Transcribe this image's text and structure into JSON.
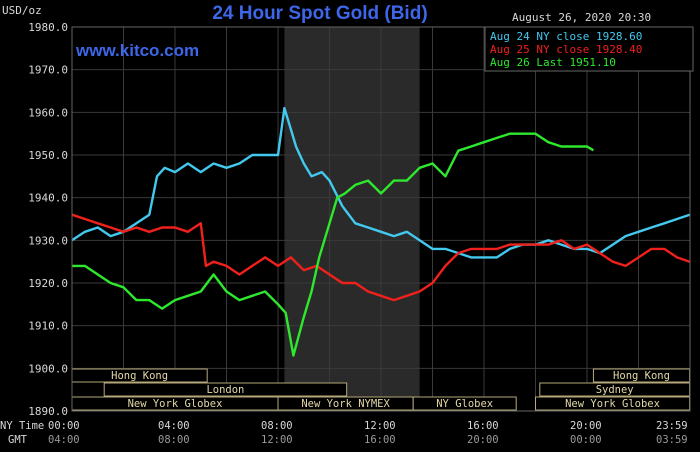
{
  "header": {
    "title": "24 Hour Spot Gold (Bid)",
    "unit_label": "USD/oz",
    "timestamp": "August 26, 2020 20:30",
    "watermark": "www.kitco.com"
  },
  "legend": [
    {
      "label": "Aug 24 NY close 1928.60",
      "color": "#43c8ee"
    },
    {
      "label": "Aug 25 NY close 1928.40",
      "color": "#f0201c"
    },
    {
      "label": "Aug 26 Last 1951.10",
      "color": "#2ee82e"
    }
  ],
  "sessions": [
    {
      "label": "Hong Kong",
      "row": 0,
      "start": "00:00",
      "end": "05:15"
    },
    {
      "label": "Hong Kong",
      "row": 0,
      "start": "20:15",
      "end": "23:59"
    },
    {
      "label": "London",
      "row": 1,
      "start": "01:15",
      "end": "10:40"
    },
    {
      "label": "Sydney",
      "row": 1,
      "start": "18:10",
      "end": "23:59"
    },
    {
      "label": "New York Globex",
      "row": 2,
      "start": "00:00",
      "end": "08:00"
    },
    {
      "label": "New York NYMEX",
      "row": 2,
      "start": "08:00",
      "end": "13:15"
    },
    {
      "label": "NY Globex",
      "row": 2,
      "start": "13:15",
      "end": "17:15"
    },
    {
      "label": "New York Globex",
      "row": 2,
      "start": "18:00",
      "end": "23:59"
    }
  ],
  "time_rows": {
    "ny_label": "NY Time",
    "gmt_label": "GMT",
    "ny_ticks": [
      "00:00",
      "04:00",
      "08:00",
      "12:00",
      "16:00",
      "20:00",
      "23:59"
    ],
    "gmt_ticks": [
      "04:00",
      "08:00",
      "12:00",
      "16:00",
      "20:00",
      "00:00",
      "03:59"
    ]
  },
  "colors": {
    "background": "#000000",
    "grid": "#3a3a3a",
    "title": "#3d66e8",
    "nymex_band": "#2a2a2a",
    "session_fill": "#000000",
    "session_border": "#b5a87a",
    "session_text": "#e2d7a8",
    "axis_text": "#d8d8d8"
  },
  "chart_data": {
    "type": "line",
    "title": "24 Hour Spot Gold (Bid)",
    "ylabel": "USD/oz",
    "ylim": [
      1890,
      1980
    ],
    "yticks": [
      1890.0,
      1900.0,
      1910.0,
      1920.0,
      1930.0,
      1940.0,
      1950.0,
      1960.0,
      1970.0,
      1980.0
    ],
    "xlim_hours": [
      0,
      24
    ],
    "shaded_region_hours": [
      8.25,
      13.5
    ],
    "series": [
      {
        "name": "Aug 24 NY close 1928.60",
        "color": "#43c8ee",
        "points": [
          [
            0.0,
            1930
          ],
          [
            0.5,
            1932
          ],
          [
            1.0,
            1933
          ],
          [
            1.5,
            1931
          ],
          [
            2.0,
            1932
          ],
          [
            2.5,
            1934
          ],
          [
            3.0,
            1936
          ],
          [
            3.3,
            1945
          ],
          [
            3.6,
            1947
          ],
          [
            4.0,
            1946
          ],
          [
            4.5,
            1948
          ],
          [
            5.0,
            1946
          ],
          [
            5.5,
            1948
          ],
          [
            6.0,
            1947
          ],
          [
            6.5,
            1948
          ],
          [
            7.0,
            1950
          ],
          [
            7.5,
            1950
          ],
          [
            8.0,
            1950
          ],
          [
            8.25,
            1961
          ],
          [
            8.5,
            1956
          ],
          [
            8.7,
            1952
          ],
          [
            9.0,
            1948
          ],
          [
            9.3,
            1945
          ],
          [
            9.7,
            1946
          ],
          [
            10.0,
            1944
          ],
          [
            10.5,
            1938
          ],
          [
            11.0,
            1934
          ],
          [
            11.5,
            1933
          ],
          [
            12.0,
            1932
          ],
          [
            12.5,
            1931
          ],
          [
            13.0,
            1932
          ],
          [
            13.5,
            1930
          ],
          [
            14.0,
            1928
          ],
          [
            14.5,
            1928
          ],
          [
            15.0,
            1927
          ],
          [
            15.5,
            1926
          ],
          [
            16.0,
            1926
          ],
          [
            16.5,
            1926
          ],
          [
            17.0,
            1928
          ],
          [
            17.5,
            1929
          ],
          [
            18.0,
            1929
          ],
          [
            18.5,
            1930
          ],
          [
            19.0,
            1929
          ],
          [
            19.5,
            1928
          ],
          [
            20.0,
            1928
          ],
          [
            20.5,
            1927
          ],
          [
            21.0,
            1929
          ],
          [
            21.5,
            1931
          ],
          [
            22.0,
            1932
          ],
          [
            22.5,
            1933
          ],
          [
            23.0,
            1934
          ],
          [
            23.5,
            1935
          ],
          [
            23.99,
            1936
          ]
        ]
      },
      {
        "name": "Aug 25 NY close 1928.40",
        "color": "#f0201c",
        "points": [
          [
            0.0,
            1936
          ],
          [
            0.5,
            1935
          ],
          [
            1.0,
            1934
          ],
          [
            1.5,
            1933
          ],
          [
            2.0,
            1932
          ],
          [
            2.5,
            1933
          ],
          [
            3.0,
            1932
          ],
          [
            3.5,
            1933
          ],
          [
            4.0,
            1933
          ],
          [
            4.5,
            1932
          ],
          [
            5.0,
            1934
          ],
          [
            5.2,
            1924
          ],
          [
            5.5,
            1925
          ],
          [
            6.0,
            1924
          ],
          [
            6.5,
            1922
          ],
          [
            7.0,
            1924
          ],
          [
            7.5,
            1926
          ],
          [
            8.0,
            1924
          ],
          [
            8.5,
            1926
          ],
          [
            9.0,
            1923
          ],
          [
            9.5,
            1924
          ],
          [
            10.0,
            1922
          ],
          [
            10.5,
            1920
          ],
          [
            11.0,
            1920
          ],
          [
            11.5,
            1918
          ],
          [
            12.0,
            1917
          ],
          [
            12.5,
            1916
          ],
          [
            13.0,
            1917
          ],
          [
            13.5,
            1918
          ],
          [
            14.0,
            1920
          ],
          [
            14.5,
            1924
          ],
          [
            15.0,
            1927
          ],
          [
            15.5,
            1928
          ],
          [
            16.0,
            1928
          ],
          [
            16.5,
            1928
          ],
          [
            17.0,
            1929
          ],
          [
            17.5,
            1929
          ],
          [
            18.0,
            1929
          ],
          [
            18.5,
            1929
          ],
          [
            19.0,
            1930
          ],
          [
            19.5,
            1928
          ],
          [
            20.0,
            1929
          ],
          [
            20.5,
            1927
          ],
          [
            21.0,
            1925
          ],
          [
            21.5,
            1924
          ],
          [
            22.0,
            1926
          ],
          [
            22.5,
            1928
          ],
          [
            23.0,
            1928
          ],
          [
            23.5,
            1926
          ],
          [
            23.99,
            1925
          ]
        ]
      },
      {
        "name": "Aug 26 Last 1951.10",
        "color": "#2ee82e",
        "points": [
          [
            0.0,
            1924
          ],
          [
            0.5,
            1924
          ],
          [
            1.0,
            1922
          ],
          [
            1.5,
            1920
          ],
          [
            2.0,
            1919
          ],
          [
            2.5,
            1916
          ],
          [
            3.0,
            1916
          ],
          [
            3.5,
            1914
          ],
          [
            4.0,
            1916
          ],
          [
            4.5,
            1917
          ],
          [
            5.0,
            1918
          ],
          [
            5.5,
            1922
          ],
          [
            6.0,
            1918
          ],
          [
            6.5,
            1916
          ],
          [
            7.0,
            1917
          ],
          [
            7.5,
            1918
          ],
          [
            8.0,
            1915
          ],
          [
            8.3,
            1913
          ],
          [
            8.6,
            1903
          ],
          [
            9.0,
            1912
          ],
          [
            9.3,
            1918
          ],
          [
            9.6,
            1926
          ],
          [
            10.0,
            1934
          ],
          [
            10.3,
            1940
          ],
          [
            10.6,
            1941
          ],
          [
            11.0,
            1943
          ],
          [
            11.5,
            1944
          ],
          [
            12.0,
            1941
          ],
          [
            12.5,
            1944
          ],
          [
            13.0,
            1944
          ],
          [
            13.5,
            1947
          ],
          [
            14.0,
            1948
          ],
          [
            14.5,
            1945
          ],
          [
            15.0,
            1951
          ],
          [
            15.5,
            1952
          ],
          [
            16.0,
            1953
          ],
          [
            16.5,
            1954
          ],
          [
            17.0,
            1955
          ],
          [
            17.5,
            1955
          ],
          [
            18.0,
            1955
          ],
          [
            18.5,
            1953
          ],
          [
            19.0,
            1952
          ],
          [
            19.5,
            1952
          ],
          [
            20.0,
            1952
          ],
          [
            20.25,
            1951.1
          ]
        ]
      }
    ]
  }
}
